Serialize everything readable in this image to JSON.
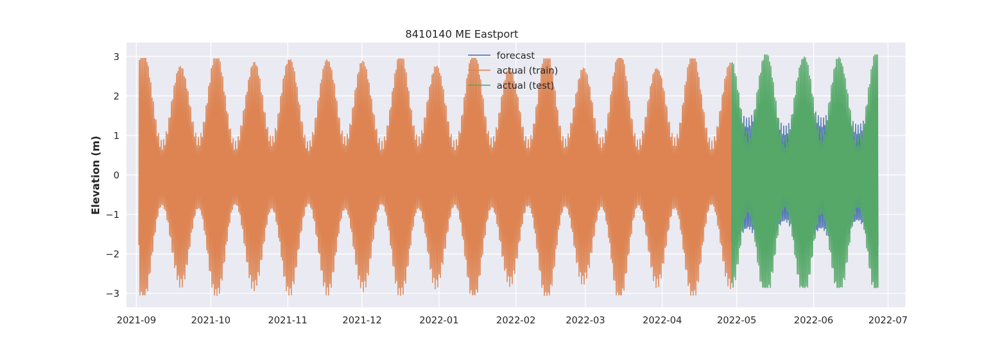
{
  "chart_data": {
    "type": "line",
    "title": "8410140 ME Eastport",
    "xlabel": "",
    "ylabel": "Elevation (m)",
    "xlim": [
      "2021-08-28",
      "2022-07-08"
    ],
    "ylim": [
      -3.35,
      3.35
    ],
    "x_ticks": [
      "2021-09",
      "2021-10",
      "2021-11",
      "2021-12",
      "2022-01",
      "2022-02",
      "2022-03",
      "2022-04",
      "2022-05",
      "2022-06",
      "2022-07"
    ],
    "y_ticks": [
      3,
      2,
      1,
      0,
      -1,
      -2,
      -3
    ],
    "y_tick_labels": [
      "3",
      "2",
      "1",
      "0",
      "−1",
      "−2",
      "−3"
    ],
    "grid": true,
    "legend_position": "top-center",
    "background": "#eaeaf2",
    "series": [
      {
        "name": "forecast",
        "color": "#4c72b0",
        "x_range": [
          "2022-04-29",
          "2022-06-27"
        ],
        "tidal_amplitude_range": [
          1.25,
          1.9
        ],
        "peaks": [
          "2022-05-13",
          "2022-05-27",
          "2022-06-12"
        ]
      },
      {
        "name": "actual (train)",
        "color": "#dd8452",
        "x_range": [
          "2021-09-02",
          "2022-04-29"
        ],
        "tidal_amplitude_range": [
          0.8,
          2.95
        ],
        "max": 2.95,
        "min": -3.05
      },
      {
        "name": "actual (test)",
        "color": "#55a868",
        "x_range": [
          "2022-04-29",
          "2022-06-27"
        ],
        "tidal_amplitude_range": [
          0.9,
          3.05
        ],
        "max": 3.05,
        "min": -2.85
      }
    ]
  }
}
